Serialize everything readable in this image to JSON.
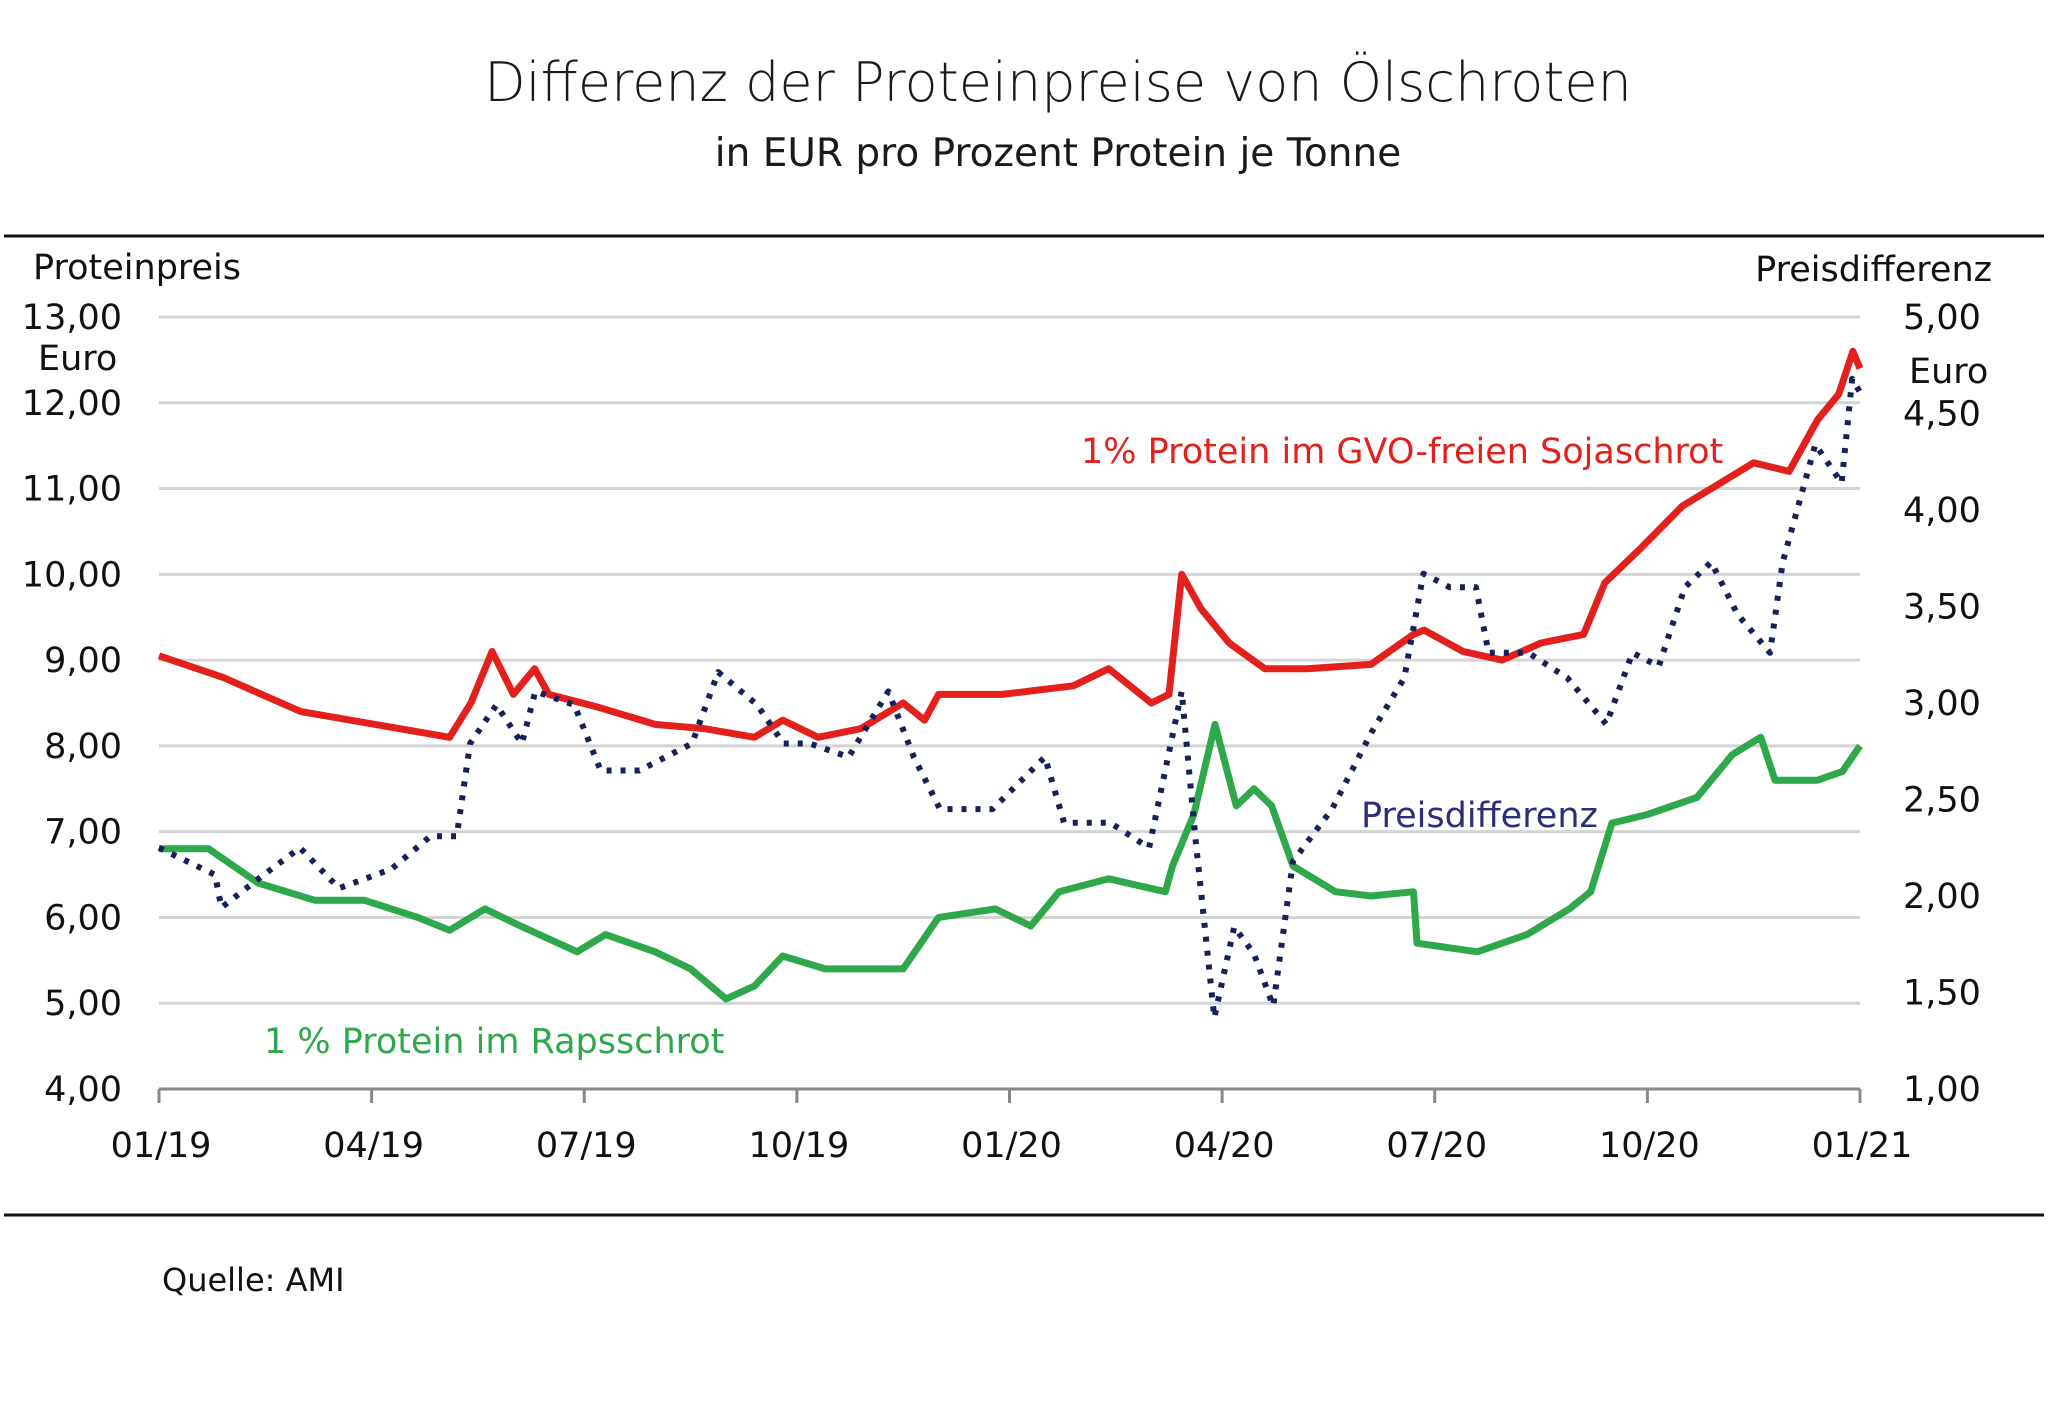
{
  "chart_data": {
    "type": "line",
    "title": "Differenz der Proteinpreise von Ölschroten",
    "subtitle": "in EUR pro Prozent Protein je Tonne",
    "source": "Quelle: AMI",
    "x_unit": "months since 01/19",
    "xlim": [
      0,
      24
    ],
    "x_ticks": [
      {
        "x": 0,
        "label": "01/19"
      },
      {
        "x": 3,
        "label": "04/19"
      },
      {
        "x": 6,
        "label": "07/19"
      },
      {
        "x": 9,
        "label": "10/19"
      },
      {
        "x": 12,
        "label": "01/20"
      },
      {
        "x": 15,
        "label": "04/20"
      },
      {
        "x": 18,
        "label": "07/20"
      },
      {
        "x": 21,
        "label": "10/20"
      },
      {
        "x": 24,
        "label": "01/21"
      }
    ],
    "left_axis": {
      "label": "Proteinpreis",
      "unit": "Euro",
      "ylim": [
        4,
        13
      ],
      "ticks": [
        "4,00",
        "5,00",
        "6,00",
        "7,00",
        "8,00",
        "9,00",
        "10,00",
        "11,00",
        "12,00",
        "13,00"
      ]
    },
    "right_axis": {
      "label": "Preisdifferenz",
      "unit": "Euro",
      "ylim": [
        1,
        5
      ],
      "ticks": [
        "1,00",
        "1,50",
        "2,00",
        "2,50",
        "3,00",
        "3,50",
        "4,00",
        "4,50",
        "5,00"
      ]
    },
    "grid": true,
    "series": [
      {
        "name": "1% Protein im GVO-freien Sojaschrot",
        "axis": "left",
        "color": "#e3201b",
        "style": "solid",
        "points": [
          [
            0,
            9.05
          ],
          [
            0.9,
            8.8
          ],
          [
            2.0,
            8.4
          ],
          [
            4.1,
            8.1
          ],
          [
            4.4,
            8.5
          ],
          [
            4.7,
            9.1
          ],
          [
            5.0,
            8.6
          ],
          [
            5.3,
            8.9
          ],
          [
            5.5,
            8.6
          ],
          [
            6.2,
            8.45
          ],
          [
            7.0,
            8.25
          ],
          [
            7.7,
            8.2
          ],
          [
            8.4,
            8.1
          ],
          [
            8.8,
            8.3
          ],
          [
            9.3,
            8.1
          ],
          [
            9.9,
            8.2
          ],
          [
            10.5,
            8.5
          ],
          [
            10.8,
            8.3
          ],
          [
            11.0,
            8.6
          ],
          [
            11.9,
            8.6
          ],
          [
            12.9,
            8.7
          ],
          [
            13.4,
            8.9
          ],
          [
            14.0,
            8.5
          ],
          [
            14.25,
            8.6
          ],
          [
            14.43,
            10.0
          ],
          [
            14.7,
            9.6
          ],
          [
            15.1,
            9.2
          ],
          [
            15.6,
            8.9
          ],
          [
            16.2,
            8.9
          ],
          [
            17.1,
            8.95
          ],
          [
            17.7,
            9.3
          ],
          [
            17.85,
            9.35
          ],
          [
            18.4,
            9.1
          ],
          [
            18.95,
            9.0
          ],
          [
            19.5,
            9.2
          ],
          [
            20.1,
            9.3
          ],
          [
            20.4,
            9.9
          ],
          [
            20.9,
            10.3
          ],
          [
            21.5,
            10.8
          ],
          [
            21.9,
            11.0
          ],
          [
            22.5,
            11.3
          ],
          [
            23.0,
            11.2
          ],
          [
            23.4,
            11.8
          ],
          [
            23.7,
            12.1
          ],
          [
            23.9,
            12.6
          ],
          [
            24,
            12.4
          ]
        ]
      },
      {
        "name": "1 % Protein im Rapsschrot",
        "axis": "left",
        "color": "#2ea84a",
        "style": "solid",
        "points": [
          [
            0,
            6.8
          ],
          [
            0.7,
            6.8
          ],
          [
            1.4,
            6.4
          ],
          [
            2.2,
            6.2
          ],
          [
            2.9,
            6.2
          ],
          [
            3.65,
            6.0
          ],
          [
            4.1,
            5.85
          ],
          [
            4.6,
            6.1
          ],
          [
            5.1,
            5.9
          ],
          [
            5.9,
            5.6
          ],
          [
            6.3,
            5.8
          ],
          [
            7.0,
            5.6
          ],
          [
            7.5,
            5.4
          ],
          [
            8.0,
            5.05
          ],
          [
            8.4,
            5.2
          ],
          [
            8.8,
            5.55
          ],
          [
            9.4,
            5.4
          ],
          [
            9.9,
            5.4
          ],
          [
            10.5,
            5.4
          ],
          [
            11.0,
            6.0
          ],
          [
            11.8,
            6.1
          ],
          [
            12.3,
            5.9
          ],
          [
            12.7,
            6.3
          ],
          [
            13.4,
            6.45
          ],
          [
            14.2,
            6.3
          ],
          [
            14.3,
            6.6
          ],
          [
            14.6,
            7.2
          ],
          [
            14.9,
            8.25
          ],
          [
            15.2,
            7.3
          ],
          [
            15.45,
            7.5
          ],
          [
            15.7,
            7.3
          ],
          [
            16.0,
            6.6
          ],
          [
            16.6,
            6.3
          ],
          [
            17.1,
            6.25
          ],
          [
            17.7,
            6.3
          ],
          [
            17.75,
            5.7
          ],
          [
            18.6,
            5.6
          ],
          [
            19.3,
            5.8
          ],
          [
            19.9,
            6.1
          ],
          [
            20.2,
            6.3
          ],
          [
            20.5,
            7.1
          ],
          [
            21.0,
            7.2
          ],
          [
            21.7,
            7.4
          ],
          [
            22.2,
            7.9
          ],
          [
            22.6,
            8.1
          ],
          [
            22.8,
            7.6
          ],
          [
            23.4,
            7.6
          ],
          [
            23.75,
            7.7
          ],
          [
            24,
            8.0
          ]
        ]
      },
      {
        "name": "Preisdifferenz",
        "axis": "right",
        "color": "#16215a",
        "style": "dotted",
        "points": [
          [
            0,
            2.25
          ],
          [
            0.79,
            2.11
          ],
          [
            0.88,
            1.94
          ],
          [
            1.44,
            2.1
          ],
          [
            1.99,
            2.25
          ],
          [
            2.54,
            2.04
          ],
          [
            3.28,
            2.14
          ],
          [
            3.83,
            2.31
          ],
          [
            4.2,
            2.31
          ],
          [
            4.39,
            2.79
          ],
          [
            4.76,
            2.99
          ],
          [
            5.12,
            2.79
          ],
          [
            5.31,
            3.06
          ],
          [
            5.86,
            2.99
          ],
          [
            6.23,
            2.65
          ],
          [
            6.78,
            2.65
          ],
          [
            7.52,
            2.79
          ],
          [
            7.89,
            3.16
          ],
          [
            8.44,
            2.99
          ],
          [
            8.81,
            2.79
          ],
          [
            9.18,
            2.79
          ],
          [
            9.73,
            2.72
          ],
          [
            10.29,
            3.06
          ],
          [
            10.65,
            2.72
          ],
          [
            11.02,
            2.45
          ],
          [
            11.76,
            2.45
          ],
          [
            12.5,
            2.72
          ],
          [
            12.77,
            2.38
          ],
          [
            13.42,
            2.38
          ],
          [
            13.97,
            2.25
          ],
          [
            14.43,
            3.06
          ],
          [
            14.62,
            2.31
          ],
          [
            14.89,
            1.37
          ],
          [
            15.17,
            1.84
          ],
          [
            15.45,
            1.7
          ],
          [
            15.72,
            1.43
          ],
          [
            16.0,
            2.18
          ],
          [
            16.55,
            2.45
          ],
          [
            17.11,
            2.85
          ],
          [
            17.57,
            3.13
          ],
          [
            17.84,
            3.67
          ],
          [
            18.21,
            3.6
          ],
          [
            18.58,
            3.6
          ],
          [
            18.76,
            3.26
          ],
          [
            19.32,
            3.26
          ],
          [
            19.87,
            3.13
          ],
          [
            20.42,
            2.89
          ],
          [
            20.79,
            3.26
          ],
          [
            21.16,
            3.19
          ],
          [
            21.53,
            3.6
          ],
          [
            21.9,
            3.73
          ],
          [
            22.27,
            3.46
          ],
          [
            22.73,
            3.26
          ],
          [
            22.91,
            3.73
          ],
          [
            23.37,
            4.34
          ],
          [
            23.74,
            4.14
          ],
          [
            23.89,
            4.68
          ],
          [
            24,
            4.61
          ]
        ]
      }
    ]
  }
}
